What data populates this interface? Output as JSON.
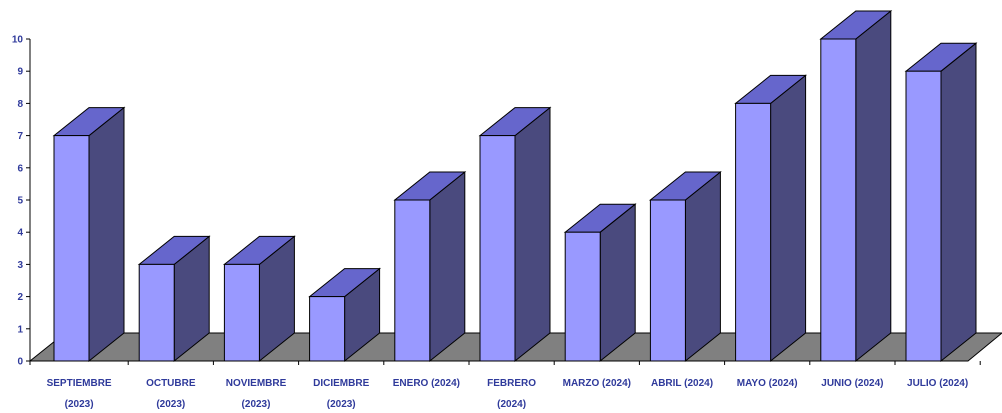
{
  "chart_data": {
    "type": "bar",
    "categories": [
      [
        "SEPTIEMBRE",
        "(2023)"
      ],
      [
        "OCTUBRE",
        "(2023)"
      ],
      [
        "NOVIEMBRE",
        "(2023)"
      ],
      [
        "DICIEMBRE",
        "(2023)"
      ],
      [
        "ENERO (2024)"
      ],
      [
        "FEBRERO",
        "(2024)"
      ],
      [
        "MARZO (2024)"
      ],
      [
        "ABRIL (2024)"
      ],
      [
        "MAYO (2024)"
      ],
      [
        "JUNIO (2024)"
      ],
      [
        "JULIO (2024)"
      ]
    ],
    "values": [
      7,
      3,
      3,
      2,
      5,
      7,
      4,
      5,
      8,
      10,
      9
    ],
    "ylim": [
      0,
      10
    ],
    "yticks": [
      "0",
      "1",
      "2",
      "3",
      "4",
      "5",
      "6",
      "7",
      "8",
      "9",
      "10"
    ],
    "title": "",
    "xlabel": "",
    "ylabel": "",
    "grid": false,
    "style": "3d-column",
    "colors": {
      "bar_front": "#9999ff",
      "bar_top": "#6666cc",
      "bar_side": "#4a4a7e",
      "floor": "#808080",
      "axis": "#000000",
      "label": "#2f3a9b"
    }
  }
}
